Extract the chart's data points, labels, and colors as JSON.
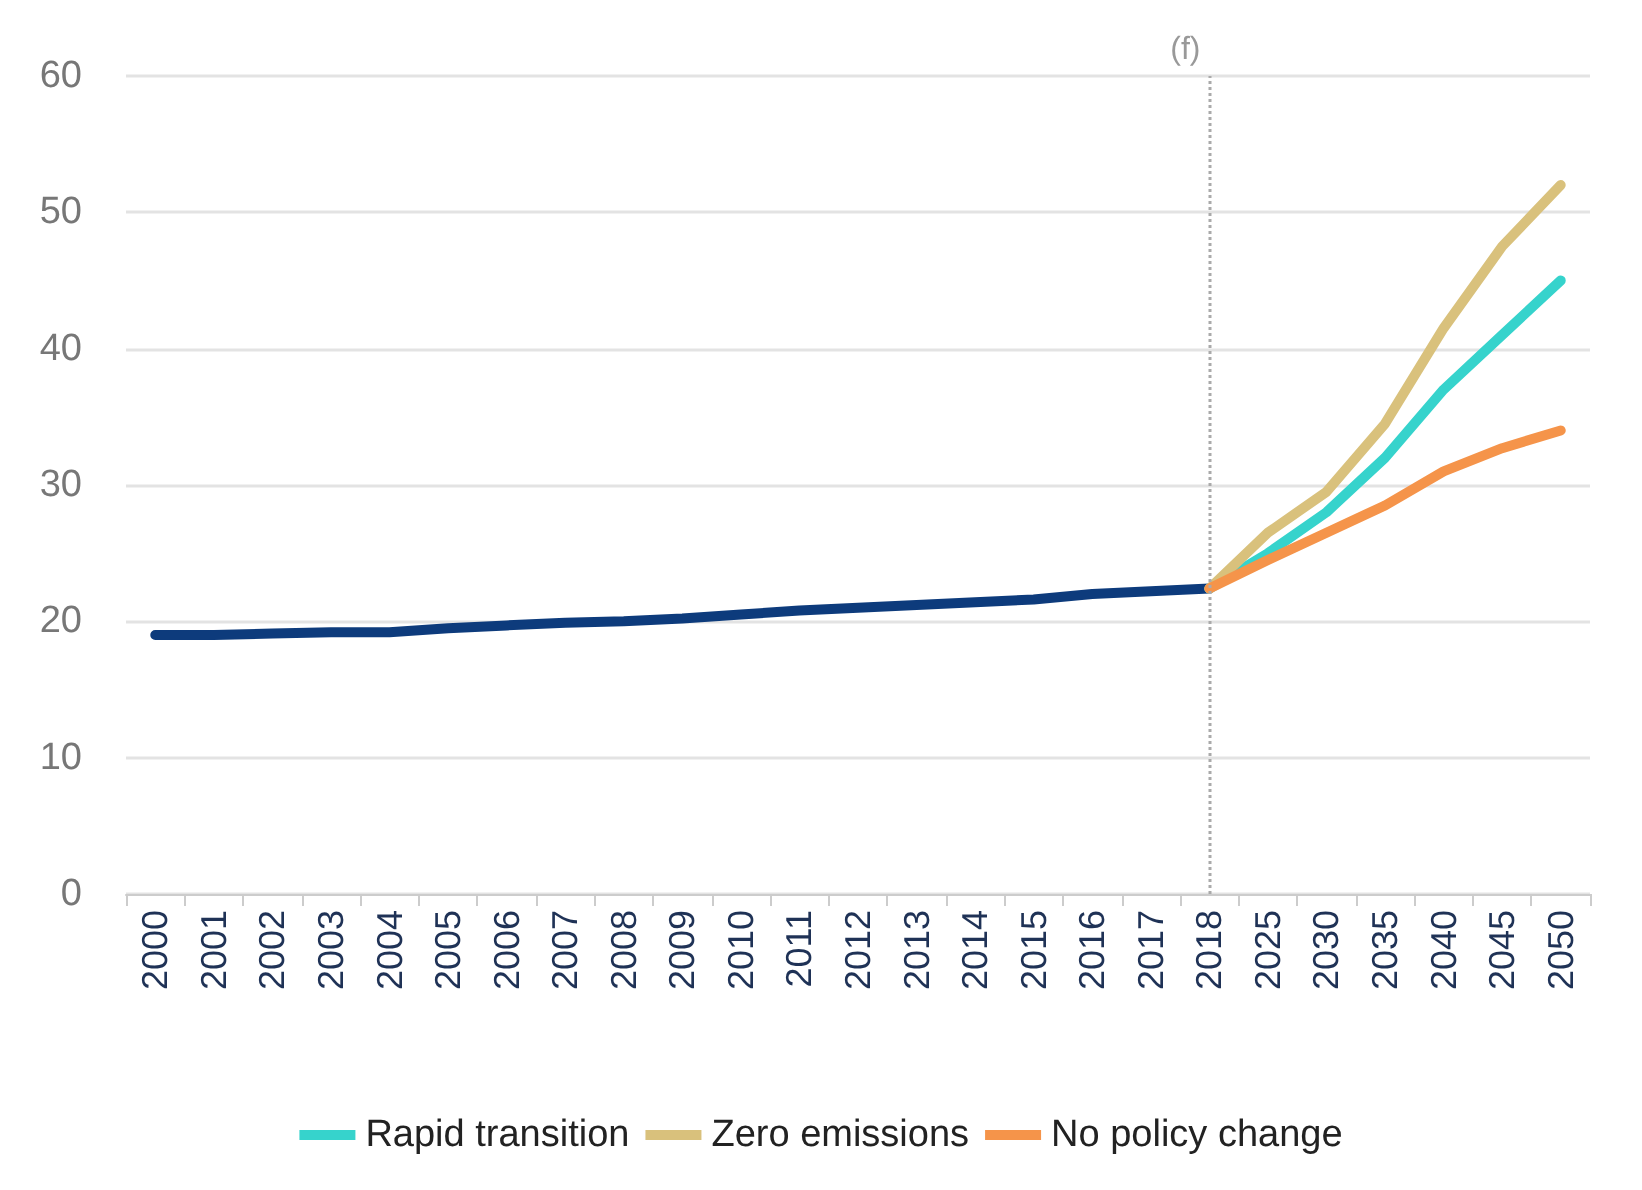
{
  "chart_data": {
    "type": "line",
    "categories": [
      "2000",
      "2001",
      "2002",
      "2003",
      "2004",
      "2005",
      "2006",
      "2007",
      "2008",
      "2009",
      "2010",
      "2011",
      "2012",
      "2013",
      "2014",
      "2015",
      "2016",
      "2017",
      "2018",
      "2025",
      "2030",
      "2035",
      "2040",
      "2045",
      "2050"
    ],
    "series": [
      {
        "color": "#0d3b7c",
        "values": [
          19,
          19,
          19.1,
          19.2,
          19.2,
          19.5,
          19.7,
          19.9,
          20,
          20.2,
          20.5,
          20.8,
          21,
          21.2,
          21.4,
          21.6,
          22,
          22.2,
          22.4,
          null,
          null,
          null,
          null,
          null,
          null
        ]
      },
      {
        "name": "Rapid transition",
        "color": "#36d3cc",
        "values": [
          null,
          null,
          null,
          null,
          null,
          null,
          null,
          null,
          null,
          null,
          null,
          null,
          null,
          null,
          null,
          null,
          null,
          null,
          22.4,
          25,
          28,
          32,
          37,
          41,
          45
        ]
      },
      {
        "name": "Zero emissions",
        "color": "#d9c17c",
        "values": [
          null,
          null,
          null,
          null,
          null,
          null,
          null,
          null,
          null,
          null,
          null,
          null,
          null,
          null,
          null,
          null,
          null,
          null,
          22.4,
          26.5,
          29.5,
          34.5,
          41.5,
          47.5,
          52
        ]
      },
      {
        "name": "No policy change",
        "color": "#f5944a",
        "values": [
          null,
          null,
          null,
          null,
          null,
          null,
          null,
          null,
          null,
          null,
          null,
          null,
          null,
          null,
          null,
          null,
          null,
          null,
          22.4,
          24.5,
          26.5,
          28.5,
          31,
          32.7,
          34
        ]
      }
    ],
    "ylim": [
      0,
      60
    ],
    "yticks": [
      0,
      10,
      20,
      30,
      40,
      50,
      60
    ],
    "grid": "y",
    "legend": "bottom",
    "marker": "none",
    "line_style": "solid",
    "ref_lines": [
      {
        "axis": "x",
        "value": "2018",
        "label": "(f)",
        "color": "#aaaaaa",
        "line_style": "dotted"
      }
    ]
  }
}
